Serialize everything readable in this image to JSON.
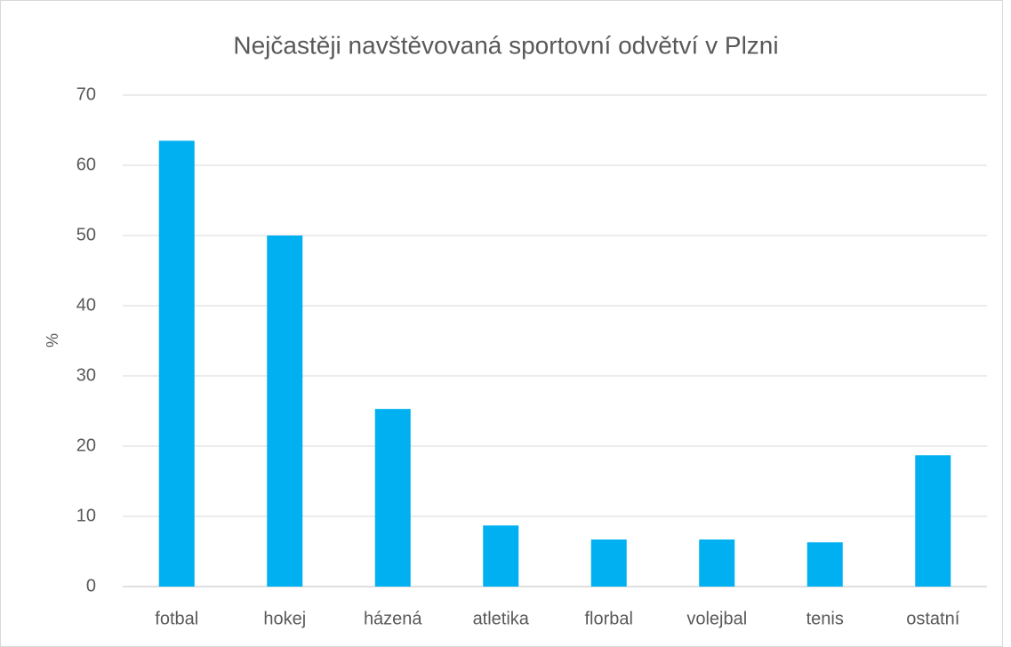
{
  "chart_data": {
    "type": "bar",
    "title": "Nejčastěji navštěvovaná sportovní odvětví v Plzni",
    "y_label": "%",
    "categories": [
      "fotbal",
      "hokej",
      "házená",
      "atletika",
      "florbal",
      "volejbal",
      "tenis",
      "ostatní"
    ],
    "values": [
      63.5,
      50,
      25.3,
      8.7,
      6.7,
      6.7,
      6.3,
      18.7
    ],
    "color": "#00b0f0",
    "ylim": [
      0,
      70
    ],
    "yticks": [
      0,
      10,
      20,
      30,
      40,
      50,
      60,
      70
    ],
    "grid": true
  }
}
